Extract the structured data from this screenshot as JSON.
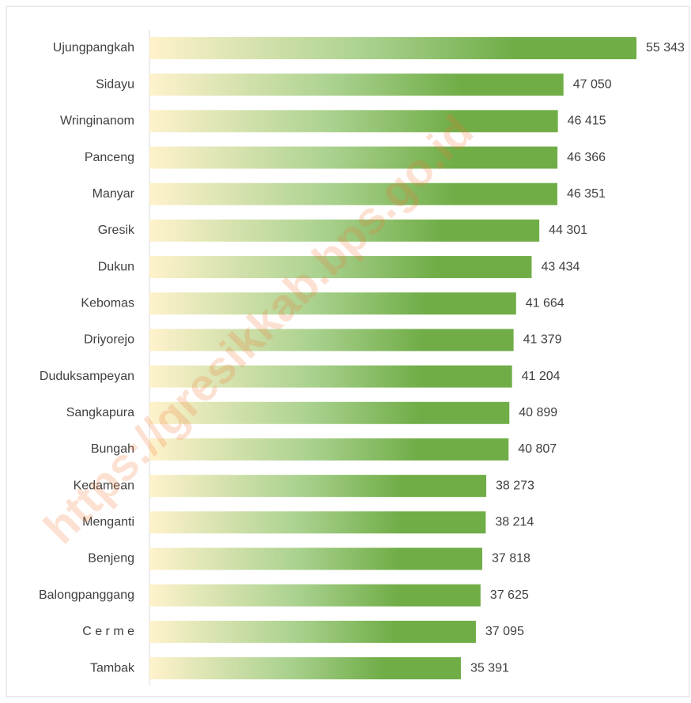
{
  "chart_data": {
    "type": "bar",
    "orientation": "horizontal",
    "categories": [
      "Ujungpangkah",
      "Sidayu",
      "Wringinanom",
      "Panceng",
      "Manyar",
      "Gresik",
      "Dukun",
      "Kebomas",
      "Driyorejo",
      "Duduksampeyan",
      "Sangkapura",
      "Bungah",
      "Kedamean",
      "Menganti",
      "Benjeng",
      "Balongpanggang",
      "C e r m e",
      "Tambak"
    ],
    "values": [
      55343,
      47050,
      46415,
      46366,
      46351,
      44301,
      43434,
      41664,
      41379,
      41204,
      40899,
      40807,
      38273,
      38214,
      37818,
      37625,
      37095,
      35391
    ],
    "value_labels": [
      "55 343",
      "47 050",
      "46 415",
      "46 366",
      "46 351",
      "44 301",
      "43 434",
      "41 664",
      "41 379",
      "41 204",
      "40 899",
      "40 807",
      "38 273",
      "38 214",
      "37 818",
      "37 625",
      "37 095",
      "35 391"
    ],
    "colors": [
      "#fff2cc",
      "#a9d18e",
      "#70ad47"
    ],
    "xlim": [
      0,
      61000
    ]
  },
  "watermark": "https://gresikkab.bps.go.id"
}
